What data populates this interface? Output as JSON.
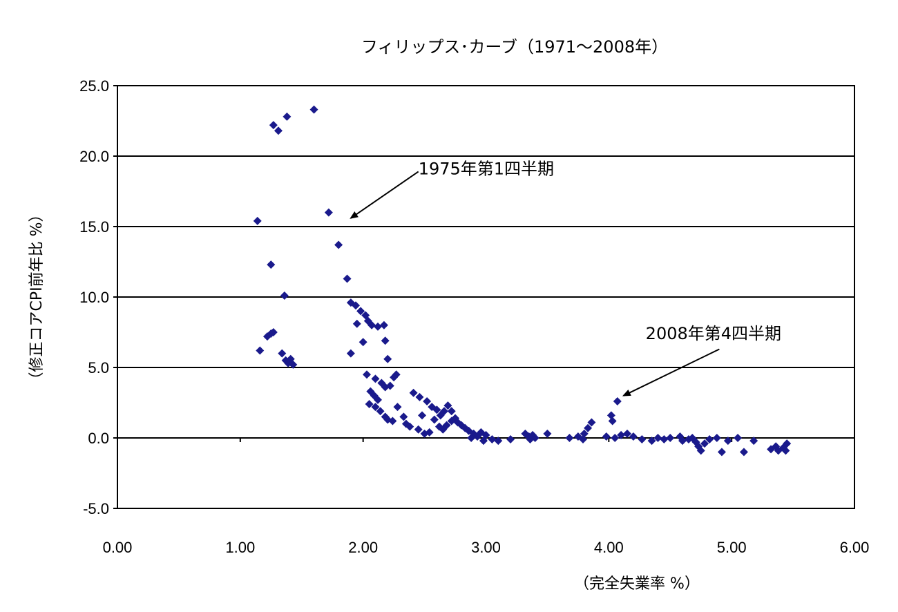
{
  "chart_data": {
    "type": "scatter",
    "title": "フィリップス･カーブ（1971～2008年）",
    "xlabel": "（完全失業率 %）",
    "ylabel": "（修正コアCPI前年比 %）",
    "xlim": [
      0,
      6
    ],
    "ylim": [
      -5,
      25
    ],
    "x_ticks": [
      0,
      1,
      2,
      3,
      4,
      5,
      6
    ],
    "x_tick_labels": [
      "0.00",
      "1.00",
      "2.00",
      "3.00",
      "4.00",
      "5.00",
      "6.00"
    ],
    "y_ticks": [
      -5,
      0,
      5,
      10,
      15,
      20,
      25
    ],
    "y_tick_labels": [
      "-5.0",
      "0.0",
      "5.0",
      "10.0",
      "15.0",
      "20.0",
      "25.0"
    ],
    "grid": "horizontal",
    "marker_color": "#1a1a8c",
    "annotations": [
      {
        "text": "1975年第1四半期",
        "text_at": [
          2.45,
          18.7
        ],
        "arrow_from": [
          2.45,
          18.9
        ],
        "arrow_to": [
          1.9,
          15.6
        ]
      },
      {
        "text": "2008年第4四半期",
        "text_at": [
          4.3,
          7.0
        ],
        "arrow_from": [
          4.9,
          6.3
        ],
        "arrow_to": [
          4.12,
          3.0
        ]
      }
    ],
    "points": [
      [
        1.27,
        22.2
      ],
      [
        1.31,
        21.8
      ],
      [
        1.38,
        22.8
      ],
      [
        1.6,
        23.3
      ],
      [
        1.14,
        15.4
      ],
      [
        1.72,
        16.0
      ],
      [
        1.8,
        13.7
      ],
      [
        1.87,
        11.3
      ],
      [
        1.25,
        12.3
      ],
      [
        1.36,
        10.1
      ],
      [
        1.22,
        7.2
      ],
      [
        1.25,
        7.4
      ],
      [
        1.27,
        7.5
      ],
      [
        1.16,
        6.2
      ],
      [
        1.34,
        6.0
      ],
      [
        1.37,
        5.5
      ],
      [
        1.39,
        5.3
      ],
      [
        1.43,
        5.2
      ],
      [
        1.41,
        5.6
      ],
      [
        1.9,
        9.6
      ],
      [
        1.94,
        9.4
      ],
      [
        1.98,
        9.0
      ],
      [
        2.02,
        8.7
      ],
      [
        2.04,
        8.3
      ],
      [
        2.07,
        8.0
      ],
      [
        1.95,
        8.1
      ],
      [
        2.12,
        7.9
      ],
      [
        2.17,
        8.0
      ],
      [
        2.0,
        6.8
      ],
      [
        2.18,
        6.9
      ],
      [
        1.9,
        6.0
      ],
      [
        2.2,
        5.6
      ],
      [
        2.03,
        4.5
      ],
      [
        2.1,
        4.2
      ],
      [
        2.15,
        3.9
      ],
      [
        2.18,
        3.6
      ],
      [
        2.22,
        3.7
      ],
      [
        2.25,
        4.3
      ],
      [
        2.27,
        4.5
      ],
      [
        2.06,
        3.3
      ],
      [
        2.09,
        3.0
      ],
      [
        2.12,
        2.7
      ],
      [
        2.05,
        2.4
      ],
      [
        2.1,
        2.2
      ],
      [
        2.14,
        1.9
      ],
      [
        2.18,
        1.5
      ],
      [
        2.2,
        1.3
      ],
      [
        2.24,
        1.2
      ],
      [
        2.28,
        2.2
      ],
      [
        2.33,
        1.5
      ],
      [
        2.35,
        1.0
      ],
      [
        2.38,
        0.8
      ],
      [
        2.41,
        3.2
      ],
      [
        2.46,
        2.9
      ],
      [
        2.52,
        2.6
      ],
      [
        2.56,
        2.2
      ],
      [
        2.6,
        2.0
      ],
      [
        2.63,
        1.6
      ],
      [
        2.66,
        1.9
      ],
      [
        2.69,
        2.3
      ],
      [
        2.72,
        1.9
      ],
      [
        2.75,
        1.4
      ],
      [
        2.72,
        1.2
      ],
      [
        2.68,
        0.9
      ],
      [
        2.65,
        0.6
      ],
      [
        2.62,
        0.8
      ],
      [
        2.58,
        1.3
      ],
      [
        2.48,
        1.6
      ],
      [
        2.45,
        0.6
      ],
      [
        2.5,
        0.3
      ],
      [
        2.54,
        0.4
      ],
      [
        2.77,
        1.1
      ],
      [
        2.8,
        0.9
      ],
      [
        2.83,
        0.7
      ],
      [
        2.86,
        0.5
      ],
      [
        2.9,
        0.3
      ],
      [
        2.93,
        0.1
      ],
      [
        2.96,
        0.4
      ],
      [
        3.0,
        0.2
      ],
      [
        3.05,
        -0.1
      ],
      [
        2.98,
        -0.2
      ],
      [
        2.88,
        0.0
      ],
      [
        3.1,
        -0.2
      ],
      [
        3.2,
        -0.1
      ],
      [
        3.32,
        0.3
      ],
      [
        3.35,
        0.1
      ],
      [
        3.38,
        0.2
      ],
      [
        3.4,
        0.0
      ],
      [
        3.36,
        -0.1
      ],
      [
        3.5,
        0.3
      ],
      [
        3.68,
        0.0
      ],
      [
        3.75,
        0.1
      ],
      [
        3.8,
        0.3
      ],
      [
        3.83,
        0.7
      ],
      [
        3.86,
        1.1
      ],
      [
        3.79,
        -0.1
      ],
      [
        3.98,
        0.1
      ],
      [
        4.02,
        1.6
      ],
      [
        4.03,
        1.2
      ],
      [
        4.07,
        2.6
      ],
      [
        4.05,
        0.0
      ],
      [
        4.1,
        0.2
      ],
      [
        4.15,
        0.3
      ],
      [
        4.2,
        0.1
      ],
      [
        4.27,
        -0.1
      ],
      [
        4.35,
        -0.2
      ],
      [
        4.4,
        0.0
      ],
      [
        4.45,
        -0.1
      ],
      [
        4.5,
        0.0
      ],
      [
        4.58,
        0.1
      ],
      [
        4.6,
        -0.2
      ],
      [
        4.65,
        -0.1
      ],
      [
        4.68,
        0.0
      ],
      [
        4.71,
        -0.3
      ],
      [
        4.73,
        -0.6
      ],
      [
        4.75,
        -0.9
      ],
      [
        4.78,
        -0.4
      ],
      [
        4.82,
        -0.1
      ],
      [
        4.88,
        0.0
      ],
      [
        4.92,
        -1.0
      ],
      [
        4.97,
        -0.2
      ],
      [
        5.05,
        0.0
      ],
      [
        5.1,
        -1.0
      ],
      [
        5.18,
        -0.2
      ],
      [
        5.32,
        -0.8
      ],
      [
        5.36,
        -0.6
      ],
      [
        5.38,
        -0.9
      ],
      [
        5.42,
        -0.7
      ],
      [
        5.44,
        -0.9
      ],
      [
        5.45,
        -0.4
      ]
    ]
  }
}
